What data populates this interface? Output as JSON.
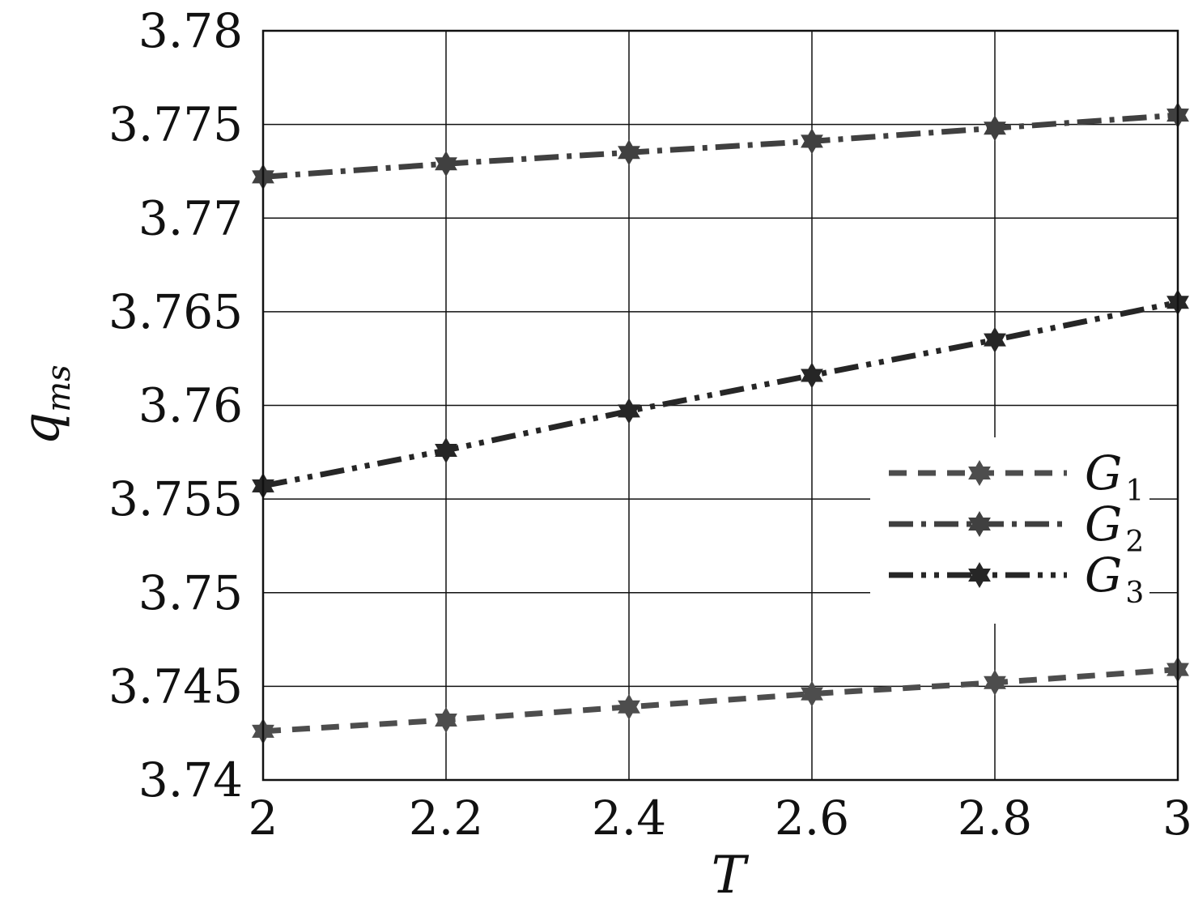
{
  "chart_data": {
    "type": "line",
    "xlabel": "T",
    "ylabel": {
      "base": "q",
      "sub": "ms"
    },
    "xlim": [
      2,
      3
    ],
    "ylim": [
      3.74,
      3.78
    ],
    "xticks": [
      "2",
      "2.2",
      "2.4",
      "2.6",
      "2.8",
      "3"
    ],
    "yticks": [
      "3.74",
      "3.745",
      "3.75",
      "3.755",
      "3.76",
      "3.765",
      "3.77",
      "3.775",
      "3.78"
    ],
    "grid": true,
    "legend_position": "right",
    "x": [
      2,
      2.2,
      2.4,
      2.6,
      2.8,
      3
    ],
    "series": [
      {
        "name": "G",
        "sub": "1",
        "color": "#4d4d4d",
        "dash": "dashed",
        "values": [
          3.7426,
          3.7432,
          3.7439,
          3.7446,
          3.7452,
          3.7459
        ]
      },
      {
        "name": "G",
        "sub": "2",
        "color": "#404040",
        "dash": "dash-dot",
        "values": [
          3.7722,
          3.7729,
          3.7735,
          3.7741,
          3.7748,
          3.7755
        ]
      },
      {
        "name": "G",
        "sub": "3",
        "color": "#262626",
        "dash": "dash-dot-dot",
        "values": [
          3.7557,
          3.7576,
          3.7597,
          3.7616,
          3.7635,
          3.7655
        ]
      }
    ]
  }
}
